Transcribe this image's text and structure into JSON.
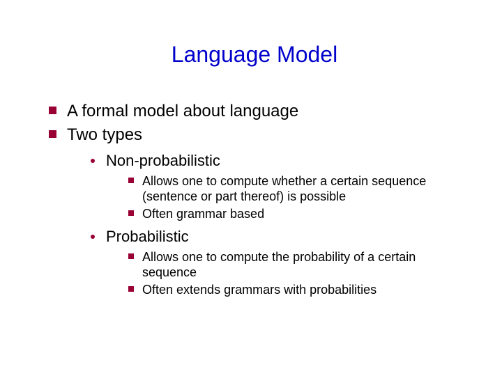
{
  "colors": {
    "title": "#0000cc",
    "body_text": "#000000",
    "bullet": "#990033",
    "background": "#ffffff"
  },
  "typography": {
    "title_fontsize": 32,
    "l1_fontsize": 24,
    "l2_fontsize": 22,
    "l3_fontsize": 18,
    "font_family": "Arial"
  },
  "slide": {
    "title": "Language Model",
    "bullets_l1": {
      "b0": "A formal model about language",
      "b1": "Two types"
    },
    "nonprob": {
      "label": "Non-probabilistic",
      "sub": {
        "s0": "Allows one to compute whether a certain sequence (sentence or part thereof) is possible",
        "s1": "Often grammar based"
      }
    },
    "prob": {
      "label": "Probabilistic",
      "sub": {
        "s0": "Allows one to compute the probability of a certain sequence",
        "s1": "Often extends grammars with probabilities"
      }
    }
  }
}
